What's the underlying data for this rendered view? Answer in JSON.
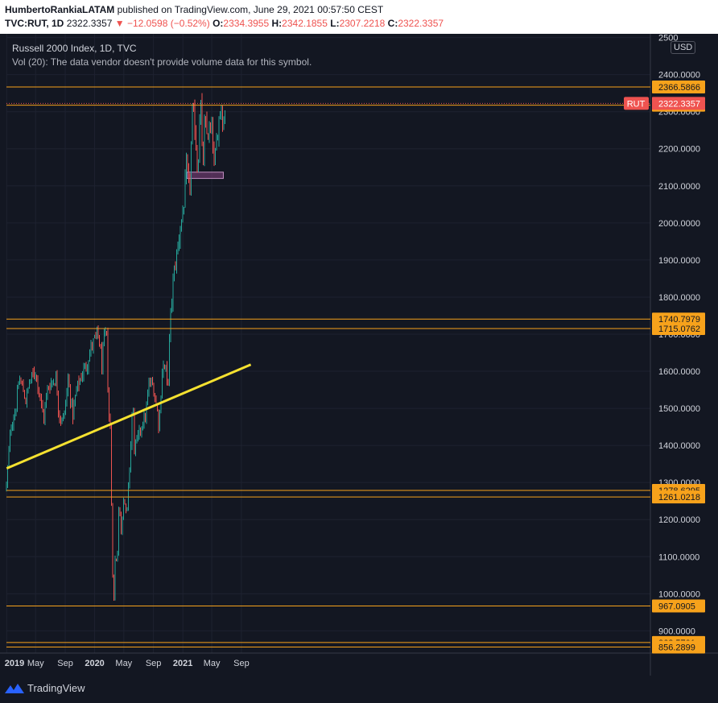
{
  "header": {
    "author": "HumbertoRankiaLATAM",
    "published": " published on TradingView.com, June 29, 2021 00:57:50 CEST",
    "symbol": "TVC:RUT, 1D",
    "last": "2322.3357",
    "change": "▼ −12.0598 (−0.52%)",
    "o_label": "O:",
    "o_value": "2334.3955",
    "h_label": "H:",
    "h_value": "2342.1855",
    "l_label": "L:",
    "l_value": "2307.2218",
    "c_label": "C:",
    "c_value": "2322.3357"
  },
  "legend": {
    "title": "Russell 2000 Index, 1D, TVC",
    "volume_note": "Vol (20): The data vendor doesn't provide volume data for this symbol."
  },
  "currency": "USD",
  "symbol_badge": "RUT",
  "footer": {
    "brand": "TradingView"
  },
  "colors": {
    "background": "#131722",
    "up": "#26a69a",
    "down": "#ef5350",
    "level_line": "#f7a21b",
    "trend_line": "#f5e130",
    "price_line": "#ef5350",
    "zone": "#7b3f7a"
  },
  "chart_data": {
    "type": "candlestick",
    "ylim": [
      840,
      2510
    ],
    "y_ticks": [
      900,
      1000,
      1100,
      1200,
      1300,
      1400,
      1500,
      1600,
      1700,
      1800,
      1900,
      2000,
      2100,
      2200,
      2300,
      2400,
      2500
    ],
    "x_ticks": [
      "2019",
      "May",
      "Sep",
      "2020",
      "May",
      "Sep",
      "2021",
      "May",
      "Sep"
    ],
    "last_price": 2322.3357,
    "levels": [
      2366.5866,
      2317.6473,
      1740.7979,
      1715.0762,
      1278.6295,
      1261.0218,
      967.0905,
      868.5701,
      856.2899
    ],
    "trendline": [
      {
        "x": "2019-01-01",
        "y": 1338
      },
      {
        "x": "2021-10-10",
        "y": 1618
      }
    ],
    "zone": {
      "x_start": "2021-01-18",
      "x_end": "2021-06-18",
      "y_low": 2120,
      "y_high": 2137
    },
    "price_path": [
      [
        "2018-12-31",
        1290
      ],
      [
        "2019-01-04",
        1330
      ],
      [
        "2019-01-18",
        1450
      ],
      [
        "2019-02-08",
        1500
      ],
      [
        "2019-02-22",
        1580
      ],
      [
        "2019-03-06",
        1560
      ],
      [
        "2019-03-22",
        1520
      ],
      [
        "2019-04-05",
        1570
      ],
      [
        "2019-04-30",
        1600
      ],
      [
        "2019-05-15",
        1550
      ],
      [
        "2019-06-03",
        1470
      ],
      [
        "2019-06-20",
        1555
      ],
      [
        "2019-07-10",
        1575
      ],
      [
        "2019-07-26",
        1580
      ],
      [
        "2019-08-05",
        1490
      ],
      [
        "2019-08-15",
        1470
      ],
      [
        "2019-08-28",
        1480
      ],
      [
        "2019-09-13",
        1580
      ],
      [
        "2019-10-02",
        1480
      ],
      [
        "2019-10-18",
        1550
      ],
      [
        "2019-11-08",
        1590
      ],
      [
        "2019-11-29",
        1620
      ],
      [
        "2019-12-20",
        1670
      ],
      [
        "2020-01-17",
        1700
      ],
      [
        "2020-01-31",
        1615
      ],
      [
        "2020-02-12",
        1700
      ],
      [
        "2020-02-20",
        1690
      ],
      [
        "2020-02-28",
        1480
      ],
      [
        "2020-03-06",
        1450
      ],
      [
        "2020-03-09",
        1310
      ],
      [
        "2020-03-12",
        1200
      ],
      [
        "2020-03-18",
        990
      ],
      [
        "2020-03-23",
        970
      ],
      [
        "2020-03-27",
        1140
      ],
      [
        "2020-04-03",
        1060
      ],
      [
        "2020-04-09",
        1240
      ],
      [
        "2020-04-21",
        1170
      ],
      [
        "2020-04-30",
        1270
      ],
      [
        "2020-05-13",
        1200
      ],
      [
        "2020-05-29",
        1390
      ],
      [
        "2020-06-08",
        1540
      ],
      [
        "2020-06-11",
        1390
      ],
      [
        "2020-06-26",
        1410
      ],
      [
        "2020-07-15",
        1460
      ],
      [
        "2020-07-31",
        1480
      ],
      [
        "2020-08-14",
        1570
      ],
      [
        "2020-08-31",
        1560
      ],
      [
        "2020-09-08",
        1530
      ],
      [
        "2020-09-18",
        1490
      ],
      [
        "2020-09-24",
        1450
      ],
      [
        "2020-10-09",
        1620
      ],
      [
        "2020-10-23",
        1600
      ],
      [
        "2020-10-30",
        1540
      ],
      [
        "2020-11-09",
        1730
      ],
      [
        "2020-11-24",
        1860
      ],
      [
        "2020-12-10",
        1930
      ],
      [
        "2020-12-24",
        2000
      ],
      [
        "2021-01-08",
        2060
      ],
      [
        "2021-01-14",
        2160
      ],
      [
        "2021-01-29",
        2080
      ],
      [
        "2021-02-09",
        2290
      ],
      [
        "2021-02-18",
        2280
      ],
      [
        "2021-03-04",
        2130
      ],
      [
        "2021-03-15",
        2360
      ],
      [
        "2021-03-24",
        2130
      ],
      [
        "2021-04-01",
        2260
      ],
      [
        "2021-04-14",
        2240
      ],
      [
        "2021-05-03",
        2250
      ],
      [
        "2021-05-12",
        2140
      ],
      [
        "2021-05-25",
        2250
      ],
      [
        "2021-06-08",
        2330
      ],
      [
        "2021-06-17",
        2260
      ],
      [
        "2021-06-28",
        2322.3357
      ]
    ]
  }
}
